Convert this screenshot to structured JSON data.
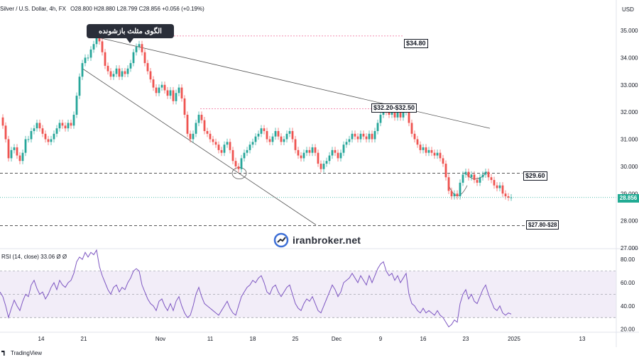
{
  "header": {
    "symbol": "Silver / U.S. Dollar, 4h, FX",
    "ohlc": "O28.800  H28.880  L28.799  C28.856  +0.056 (+0.19%)",
    "currency": "USD"
  },
  "rsi_label": "RSI (14, close)  33.06  Ø  Ø",
  "annotations": {
    "pattern_callout": "الگوی مثلث بازشونده",
    "level_top": "$34.80",
    "level_zone": "$32.20-$32.50",
    "level_support": "$29.60",
    "level_target": "$27.80-$28",
    "current_price": "28.856"
  },
  "watermark": "iranbroker.net",
  "branding": "TradingView",
  "colors": {
    "up": "#26a69a",
    "down": "#ef5350",
    "rsi": "#7e57c2",
    "rsi_band": "#ede7f6",
    "support_line": "#555555",
    "resistance_dotted": "#f48fb1"
  },
  "chart_data": {
    "type": "candlestick",
    "price_axis": {
      "ticks": [
        "35.000",
        "34.000",
        "33.000",
        "32.000",
        "31.000",
        "30.000",
        "29.000",
        "28.000",
        "27.000"
      ],
      "ylim": [
        27,
        35.6
      ]
    },
    "rsi_axis": {
      "ticks": [
        "80.00",
        "60.00",
        "40.00",
        "20.00"
      ],
      "ylim": [
        18,
        88
      ],
      "upper_band": 70,
      "lower_band": 30,
      "mid": 50
    },
    "x_axis": {
      "ticks": [
        "14",
        "21",
        "Nov",
        "11",
        "18",
        "25",
        "Dec",
        "9",
        "16",
        "23",
        "2025",
        "13"
      ]
    },
    "price_path": [
      [
        0,
        31.8
      ],
      [
        4,
        31.5
      ],
      [
        8,
        31.0
      ],
      [
        12,
        30.3
      ],
      [
        16,
        30.6
      ],
      [
        20,
        30.7
      ],
      [
        24,
        30.4
      ],
      [
        28,
        30.2
      ],
      [
        32,
        30.5
      ],
      [
        36,
        31.0
      ],
      [
        40,
        31.0
      ],
      [
        44,
        31.3
      ],
      [
        48,
        31.4
      ],
      [
        52,
        31.6
      ],
      [
        56,
        31.4
      ],
      [
        60,
        31.2
      ],
      [
        64,
        31.0
      ],
      [
        68,
        30.9
      ],
      [
        72,
        31.0
      ],
      [
        76,
        31.2
      ],
      [
        80,
        31.4
      ],
      [
        84,
        31.6
      ],
      [
        88,
        31.5
      ],
      [
        92,
        31.4
      ],
      [
        96,
        31.6
      ],
      [
        100,
        31.5
      ],
      [
        104,
        31.9
      ],
      [
        108,
        32.6
      ],
      [
        112,
        33.3
      ],
      [
        116,
        33.8
      ],
      [
        120,
        34.0
      ],
      [
        124,
        34.0
      ],
      [
        128,
        34.3
      ],
      [
        132,
        34.5
      ],
      [
        136,
        34.8
      ],
      [
        140,
        34.6
      ],
      [
        144,
        34.2
      ],
      [
        148,
        33.7
      ],
      [
        152,
        33.5
      ],
      [
        156,
        33.3
      ],
      [
        160,
        33.4
      ],
      [
        164,
        33.6
      ],
      [
        168,
        33.3
      ],
      [
        172,
        33.5
      ],
      [
        176,
        33.4
      ],
      [
        180,
        33.6
      ],
      [
        184,
        33.8
      ],
      [
        188,
        34.2
      ],
      [
        192,
        34.4
      ],
      [
        196,
        34.5
      ],
      [
        200,
        34.2
      ],
      [
        204,
        33.8
      ],
      [
        208,
        33.5
      ],
      [
        212,
        33.2
      ],
      [
        216,
        32.9
      ],
      [
        220,
        32.7
      ],
      [
        224,
        32.9
      ],
      [
        228,
        33.0
      ],
      [
        232,
        32.8
      ],
      [
        236,
        32.6
      ],
      [
        240,
        32.8
      ],
      [
        244,
        32.4
      ],
      [
        248,
        32.7
      ],
      [
        252,
        32.9
      ],
      [
        256,
        32.5
      ],
      [
        260,
        31.9
      ],
      [
        264,
        31.2
      ],
      [
        268,
        31.0
      ],
      [
        272,
        31.2
      ],
      [
        276,
        31.6
      ],
      [
        280,
        31.9
      ],
      [
        284,
        31.7
      ],
      [
        288,
        31.3
      ],
      [
        292,
        31.2
      ],
      [
        296,
        31.0
      ],
      [
        300,
        30.9
      ],
      [
        304,
        30.8
      ],
      [
        308,
        30.6
      ],
      [
        312,
        30.5
      ],
      [
        316,
        30.8
      ],
      [
        320,
        30.9
      ],
      [
        324,
        30.6
      ],
      [
        328,
        30.2
      ],
      [
        332,
        30.0
      ],
      [
        336,
        29.9
      ],
      [
        340,
        30.3
      ],
      [
        344,
        30.5
      ],
      [
        348,
        30.6
      ],
      [
        352,
        30.8
      ],
      [
        356,
        30.9
      ],
      [
        360,
        31.1
      ],
      [
        364,
        31.2
      ],
      [
        368,
        31.4
      ],
      [
        372,
        31.3
      ],
      [
        376,
        31.0
      ],
      [
        380,
        30.9
      ],
      [
        384,
        31.1
      ],
      [
        388,
        31.3
      ],
      [
        392,
        31.1
      ],
      [
        396,
        30.9
      ],
      [
        400,
        31.0
      ],
      [
        404,
        31.2
      ],
      [
        408,
        31.3
      ],
      [
        412,
        31.0
      ],
      [
        416,
        30.6
      ],
      [
        420,
        30.4
      ],
      [
        424,
        30.3
      ],
      [
        428,
        30.5
      ],
      [
        432,
        30.6
      ],
      [
        436,
        30.5
      ],
      [
        440,
        30.7
      ],
      [
        444,
        30.5
      ],
      [
        448,
        30.1
      ],
      [
        452,
        29.9
      ],
      [
        456,
        30.1
      ],
      [
        460,
        30.2
      ],
      [
        464,
        30.4
      ],
      [
        468,
        30.6
      ],
      [
        472,
        30.5
      ],
      [
        476,
        30.3
      ],
      [
        480,
        30.5
      ],
      [
        484,
        30.8
      ],
      [
        488,
        30.9
      ],
      [
        492,
        31.0
      ],
      [
        496,
        31.2
      ],
      [
        500,
        31.1
      ],
      [
        504,
        31.0
      ],
      [
        508,
        31.2
      ],
      [
        512,
        31.1
      ],
      [
        516,
        31.0
      ],
      [
        520,
        31.2
      ],
      [
        524,
        31.0
      ],
      [
        528,
        31.3
      ],
      [
        532,
        31.6
      ],
      [
        536,
        31.9
      ],
      [
        540,
        32.1
      ],
      [
        544,
        32.0
      ],
      [
        548,
        31.9
      ],
      [
        552,
        32.0
      ],
      [
        556,
        31.8
      ],
      [
        560,
        32.0
      ],
      [
        564,
        31.8
      ],
      [
        568,
        32.0
      ],
      [
        572,
        32.1
      ],
      [
        576,
        31.6
      ],
      [
        580,
        31.2
      ],
      [
        584,
        31.0
      ],
      [
        588,
        30.8
      ],
      [
        592,
        30.6
      ],
      [
        596,
        30.7
      ],
      [
        600,
        30.5
      ],
      [
        604,
        30.6
      ],
      [
        608,
        30.5
      ],
      [
        612,
        30.4
      ],
      [
        616,
        30.5
      ],
      [
        620,
        30.3
      ],
      [
        624,
        30.1
      ],
      [
        628,
        29.6
      ],
      [
        632,
        29.1
      ],
      [
        636,
        28.9
      ],
      [
        640,
        29.0
      ],
      [
        644,
        28.9
      ],
      [
        648,
        29.4
      ],
      [
        652,
        29.7
      ],
      [
        656,
        29.8
      ],
      [
        660,
        29.6
      ],
      [
        664,
        29.7
      ],
      [
        668,
        29.5
      ],
      [
        672,
        29.4
      ],
      [
        676,
        29.6
      ],
      [
        680,
        29.7
      ],
      [
        684,
        29.8
      ],
      [
        688,
        29.6
      ],
      [
        692,
        29.5
      ],
      [
        696,
        29.3
      ],
      [
        700,
        29.2
      ],
      [
        704,
        29.3
      ],
      [
        708,
        29.0
      ],
      [
        712,
        28.9
      ],
      [
        716,
        28.85
      ],
      [
        720,
        28.86
      ]
    ],
    "rsi_path": [
      [
        0,
        52
      ],
      [
        4,
        48
      ],
      [
        8,
        40
      ],
      [
        12,
        30
      ],
      [
        16,
        38
      ],
      [
        20,
        45
      ],
      [
        24,
        40
      ],
      [
        28,
        36
      ],
      [
        32,
        44
      ],
      [
        36,
        50
      ],
      [
        40,
        48
      ],
      [
        44,
        58
      ],
      [
        48,
        62
      ],
      [
        52,
        55
      ],
      [
        56,
        50
      ],
      [
        60,
        52
      ],
      [
        64,
        46
      ],
      [
        68,
        50
      ],
      [
        72,
        56
      ],
      [
        76,
        60
      ],
      [
        80,
        54
      ],
      [
        84,
        62
      ],
      [
        88,
        58
      ],
      [
        92,
        56
      ],
      [
        96,
        60
      ],
      [
        100,
        62
      ],
      [
        104,
        68
      ],
      [
        108,
        78
      ],
      [
        112,
        82
      ],
      [
        116,
        80
      ],
      [
        120,
        86
      ],
      [
        124,
        82
      ],
      [
        128,
        86
      ],
      [
        132,
        84
      ],
      [
        136,
        88
      ],
      [
        140,
        74
      ],
      [
        144,
        66
      ],
      [
        148,
        60
      ],
      [
        152,
        54
      ],
      [
        156,
        50
      ],
      [
        160,
        56
      ],
      [
        164,
        58
      ],
      [
        168,
        52
      ],
      [
        172,
        56
      ],
      [
        176,
        54
      ],
      [
        180,
        60
      ],
      [
        184,
        64
      ],
      [
        188,
        70
      ],
      [
        192,
        72
      ],
      [
        196,
        70
      ],
      [
        200,
        58
      ],
      [
        204,
        52
      ],
      [
        208,
        46
      ],
      [
        212,
        42
      ],
      [
        216,
        40
      ],
      [
        220,
        36
      ],
      [
        224,
        44
      ],
      [
        228,
        46
      ],
      [
        232,
        40
      ],
      [
        236,
        36
      ],
      [
        240,
        42
      ],
      [
        244,
        36
      ],
      [
        248,
        44
      ],
      [
        252,
        48
      ],
      [
        256,
        40
      ],
      [
        260,
        34
      ],
      [
        264,
        30
      ],
      [
        268,
        32
      ],
      [
        272,
        40
      ],
      [
        276,
        50
      ],
      [
        280,
        56
      ],
      [
        284,
        48
      ],
      [
        288,
        42
      ],
      [
        292,
        40
      ],
      [
        296,
        38
      ],
      [
        300,
        36
      ],
      [
        304,
        34
      ],
      [
        308,
        32
      ],
      [
        312,
        36
      ],
      [
        316,
        40
      ],
      [
        320,
        44
      ],
      [
        324,
        38
      ],
      [
        328,
        34
      ],
      [
        332,
        32
      ],
      [
        336,
        40
      ],
      [
        340,
        48
      ],
      [
        344,
        52
      ],
      [
        348,
        56
      ],
      [
        352,
        58
      ],
      [
        356,
        62
      ],
      [
        360,
        60
      ],
      [
        364,
        64
      ],
      [
        368,
        66
      ],
      [
        372,
        60
      ],
      [
        376,
        52
      ],
      [
        380,
        50
      ],
      [
        384,
        56
      ],
      [
        388,
        58
      ],
      [
        392,
        52
      ],
      [
        396,
        48
      ],
      [
        400,
        52
      ],
      [
        404,
        56
      ],
      [
        408,
        58
      ],
      [
        412,
        50
      ],
      [
        416,
        42
      ],
      [
        420,
        38
      ],
      [
        424,
        36
      ],
      [
        428,
        42
      ],
      [
        432,
        46
      ],
      [
        436,
        44
      ],
      [
        440,
        48
      ],
      [
        444,
        42
      ],
      [
        448,
        36
      ],
      [
        452,
        34
      ],
      [
        456,
        40
      ],
      [
        460,
        46
      ],
      [
        464,
        52
      ],
      [
        468,
        58
      ],
      [
        472,
        54
      ],
      [
        476,
        48
      ],
      [
        480,
        52
      ],
      [
        484,
        60
      ],
      [
        488,
        62
      ],
      [
        492,
        64
      ],
      [
        496,
        68
      ],
      [
        500,
        64
      ],
      [
        504,
        60
      ],
      [
        508,
        66
      ],
      [
        512,
        62
      ],
      [
        516,
        58
      ],
      [
        520,
        66
      ],
      [
        524,
        60
      ],
      [
        528,
        66
      ],
      [
        532,
        72
      ],
      [
        536,
        76
      ],
      [
        540,
        78
      ],
      [
        544,
        70
      ],
      [
        548,
        66
      ],
      [
        552,
        68
      ],
      [
        556,
        62
      ],
      [
        560,
        66
      ],
      [
        564,
        60
      ],
      [
        568,
        64
      ],
      [
        572,
        68
      ],
      [
        576,
        50
      ],
      [
        580,
        42
      ],
      [
        584,
        40
      ],
      [
        588,
        36
      ],
      [
        592,
        34
      ],
      [
        596,
        38
      ],
      [
        600,
        34
      ],
      [
        604,
        36
      ],
      [
        608,
        34
      ],
      [
        612,
        32
      ],
      [
        616,
        36
      ],
      [
        620,
        32
      ],
      [
        624,
        30
      ],
      [
        628,
        26
      ],
      [
        632,
        22
      ],
      [
        636,
        24
      ],
      [
        640,
        28
      ],
      [
        644,
        26
      ],
      [
        648,
        42
      ],
      [
        652,
        50
      ],
      [
        656,
        54
      ],
      [
        660,
        46
      ],
      [
        664,
        50
      ],
      [
        668,
        44
      ],
      [
        672,
        42
      ],
      [
        676,
        48
      ],
      [
        680,
        54
      ],
      [
        684,
        58
      ],
      [
        688,
        50
      ],
      [
        692,
        44
      ],
      [
        696,
        38
      ],
      [
        700,
        36
      ],
      [
        704,
        40
      ],
      [
        708,
        34
      ],
      [
        712,
        32
      ],
      [
        716,
        34
      ],
      [
        720,
        33
      ]
    ]
  }
}
